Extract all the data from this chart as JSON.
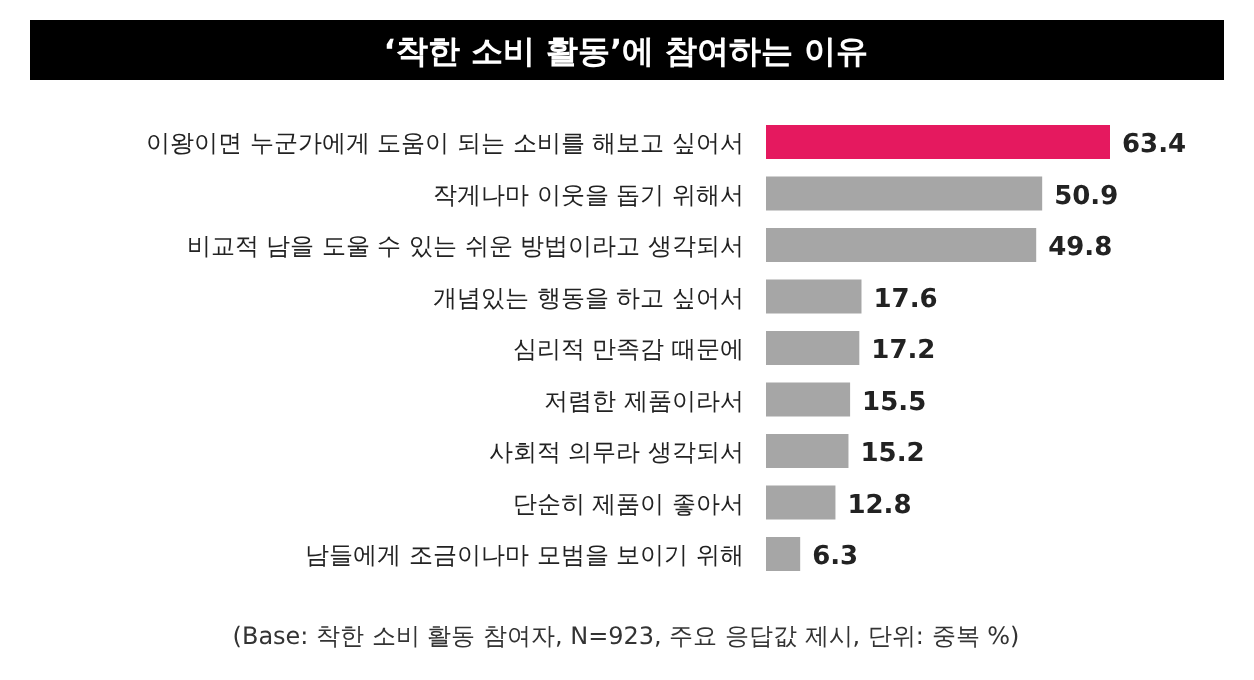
{
  "chart_data": {
    "type": "bar",
    "orientation": "horizontal",
    "title": "‘착한 소비 활동’에 참여하는 이유",
    "categories": [
      "이왕이면 누군가에게 도움이 되는 소비를 해보고 싶어서",
      "작게나마 이웃을 돕기 위해서",
      "비교적 남을 도울 수 있는 쉬운 방법이라고 생각되서",
      "개념있는 행동을 하고 싶어서",
      "심리적 만족감 때문에",
      "저렴한 제품이라서",
      "사회적 의무라 생각되서",
      "단순히 제품이 좋아서",
      "남들에게 조금이나마 모범을 보이기 위해"
    ],
    "values": [
      63.4,
      50.9,
      49.8,
      17.6,
      17.2,
      15.5,
      15.2,
      12.8,
      6.3
    ],
    "colors": [
      "#e5195f",
      "#a6a6a6",
      "#a6a6a6",
      "#a6a6a6",
      "#a6a6a6",
      "#a6a6a6",
      "#a6a6a6",
      "#a6a6a6",
      "#a6a6a6"
    ],
    "data_labels": true,
    "annotations": [
      "(Base: 착한 소비 활동 참여자, N=923, 주요 응답값 제시, 단위: 중복 %)"
    ]
  }
}
